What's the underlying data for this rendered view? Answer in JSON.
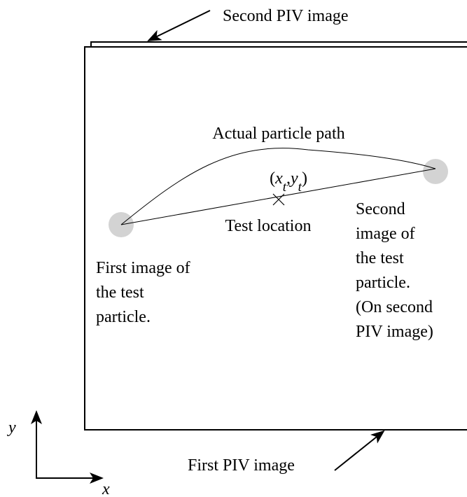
{
  "labels": {
    "second_piv": "Second PIV image",
    "first_piv": "First PIV image",
    "path": "Actual particle path",
    "test_point": [
      "(",
      "x",
      "t",
      ",",
      "y",
      "t",
      ")"
    ],
    "test_location": "Test location",
    "first_particle": [
      "First image of",
      "the test",
      "particle."
    ],
    "second_particle": [
      "Second",
      "image of",
      "the test",
      "particle.",
      "(On second",
      "PIV image)"
    ],
    "axis_x": "x",
    "axis_y": "y"
  }
}
